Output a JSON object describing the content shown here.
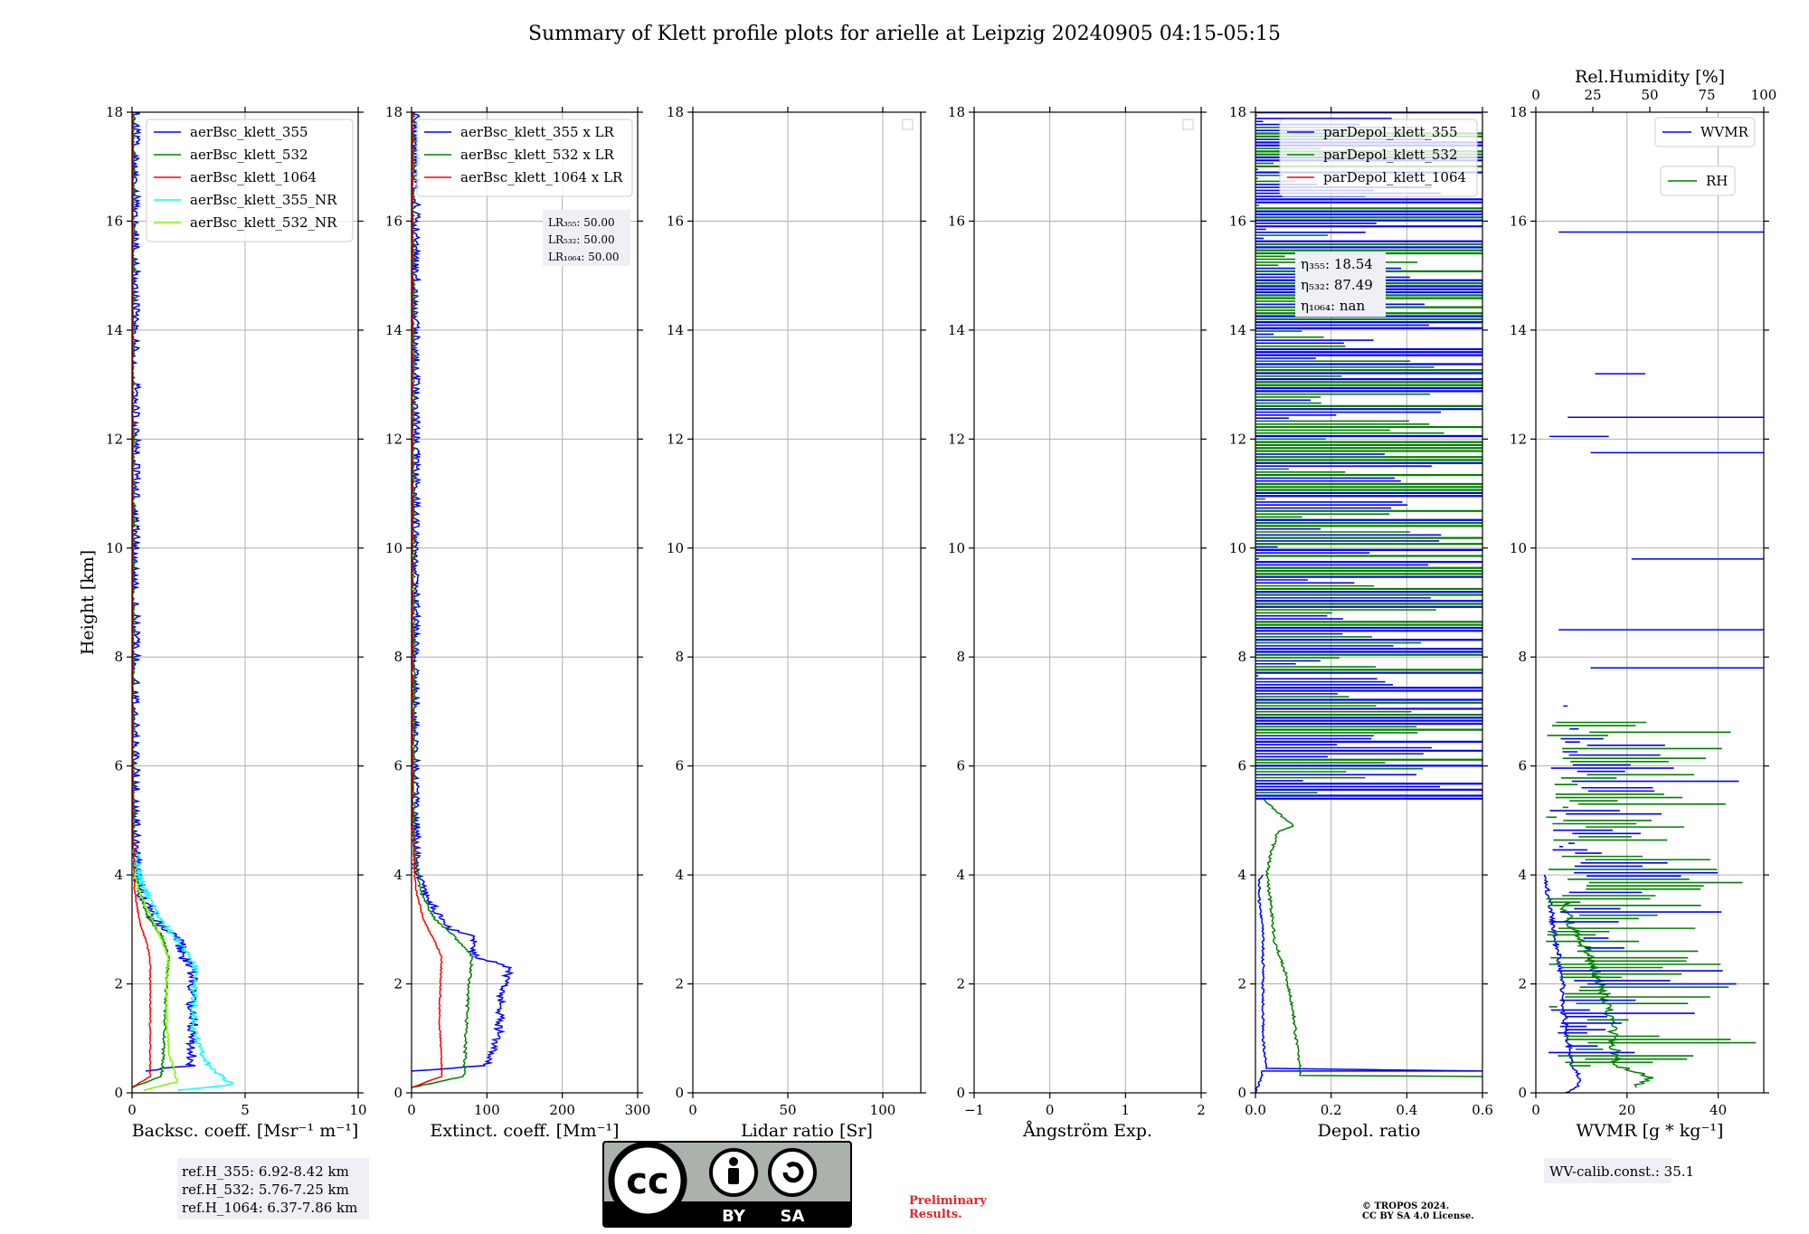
{
  "title": "Summary of Klett profile plots for arielle at Leipzig 20240905 04:15-05:15",
  "colors": {
    "blue": "#0000ff",
    "green": "#008000",
    "red": "#ff0000",
    "cyan": "#00ffff",
    "lightgreen": "#7cfc00",
    "grid": "#b0b0b0",
    "infobox": "#eef0f6",
    "prelim": "#e8222c"
  },
  "chart_data": [
    {
      "type": "line",
      "id": "backscatter",
      "xlabel": "Backsc. coeff. [Msr⁻¹ m⁻¹]",
      "ylabel": "Height [km]",
      "xlim": [
        0,
        10
      ],
      "ylim": [
        0,
        18
      ],
      "xticks": [
        "0",
        "5",
        "10"
      ],
      "xtick_values": [
        0,
        5,
        10
      ],
      "yticks": [
        0,
        2,
        4,
        6,
        8,
        10,
        12,
        14,
        16,
        18
      ],
      "legend_loc": "top-right",
      "series": [
        {
          "name": "aerBsc_klett_355",
          "color": "blue",
          "noise": 0.25,
          "points": [
            [
              0.4,
              0.4
            ],
            [
              2.6,
              0.5
            ],
            [
              2.7,
              1.0
            ],
            [
              2.6,
              1.8
            ],
            [
              2.7,
              2.3
            ],
            [
              2.2,
              2.5
            ],
            [
              2.1,
              2.9
            ],
            [
              1.5,
              3.0
            ],
            [
              1.0,
              3.2
            ],
            [
              0.5,
              3.6
            ],
            [
              0.2,
              4.0
            ],
            [
              0.1,
              5.0
            ],
            [
              0.1,
              18.0
            ]
          ]
        },
        {
          "name": "aerBsc_klett_532",
          "color": "green",
          "noise": 0.06,
          "points": [
            [
              0.0,
              0.1
            ],
            [
              1.3,
              0.3
            ],
            [
              1.4,
              0.8
            ],
            [
              1.5,
              1.8
            ],
            [
              1.6,
              2.5
            ],
            [
              1.3,
              2.9
            ],
            [
              0.7,
              3.2
            ],
            [
              0.3,
              3.7
            ],
            [
              0.05,
              4.5
            ],
            [
              0.05,
              18.0
            ]
          ]
        },
        {
          "name": "aerBsc_klett_1064",
          "color": "red",
          "noise": 0.03,
          "points": [
            [
              0.0,
              0.1
            ],
            [
              0.8,
              0.3
            ],
            [
              0.8,
              1.5
            ],
            [
              0.8,
              2.5
            ],
            [
              0.6,
              2.8
            ],
            [
              0.3,
              3.2
            ],
            [
              0.1,
              3.8
            ],
            [
              0.03,
              5.0
            ],
            [
              0.02,
              18.0
            ]
          ]
        },
        {
          "name": "aerBsc_klett_355_NR",
          "color": "cyan",
          "noise": 0.15,
          "points": [
            [
              2.0,
              0.05
            ],
            [
              4.4,
              0.15
            ],
            [
              3.2,
              0.6
            ],
            [
              2.7,
              1.2
            ],
            [
              2.8,
              2.3
            ],
            [
              2.4,
              2.6
            ],
            [
              1.2,
              3.2
            ],
            [
              0.3,
              4.0
            ],
            [
              0.2,
              4.4
            ]
          ]
        },
        {
          "name": "aerBsc_klett_532_NR",
          "color": "lightgreen",
          "noise": 0.05,
          "points": [
            [
              0.5,
              0.05
            ],
            [
              2.0,
              0.2
            ],
            [
              1.6,
              0.8
            ],
            [
              1.5,
              1.8
            ],
            [
              1.6,
              2.5
            ],
            [
              1.0,
              3.1
            ],
            [
              0.4,
              3.6
            ],
            [
              0.1,
              4.0
            ]
          ]
        }
      ],
      "legend": [
        "aerBsc_klett_355",
        "aerBsc_klett_532",
        "aerBsc_klett_1064",
        "aerBsc_klett_355_NR",
        "aerBsc_klett_532_NR"
      ]
    },
    {
      "type": "line",
      "id": "extinction",
      "xlabel": "Extinct. coeff. [Mm⁻¹]",
      "xlim": [
        0,
        300
      ],
      "ylim": [
        0,
        18
      ],
      "xticks": [
        "0",
        "100",
        "200",
        "300"
      ],
      "xtick_values": [
        0,
        100,
        200,
        300
      ],
      "yticks": [
        0,
        2,
        4,
        6,
        8,
        10,
        12,
        14,
        16,
        18
      ],
      "legend_loc": "top-right",
      "series": [
        {
          "name": "aerBsc_klett_355 x LR",
          "color": "blue",
          "noise": 6,
          "points": [
            [
              0,
              0.4
            ],
            [
              100,
              0.5
            ],
            [
              115,
              1.0
            ],
            [
              120,
              1.8
            ],
            [
              130,
              2.3
            ],
            [
              85,
              2.5
            ],
            [
              80,
              2.9
            ],
            [
              50,
              3.0
            ],
            [
              25,
              3.5
            ],
            [
              8,
              4.0
            ],
            [
              5,
              5.0
            ],
            [
              5,
              18.0
            ]
          ]
        },
        {
          "name": "aerBsc_klett_532 x LR",
          "color": "green",
          "noise": 2,
          "points": [
            [
              0,
              0.1
            ],
            [
              70,
              0.3
            ],
            [
              72,
              1.0
            ],
            [
              75,
              1.8
            ],
            [
              80,
              2.5
            ],
            [
              55,
              2.9
            ],
            [
              30,
              3.2
            ],
            [
              12,
              3.7
            ],
            [
              3,
              4.5
            ],
            [
              2,
              18.0
            ]
          ]
        },
        {
          "name": "aerBsc_klett_1064 x LR",
          "color": "red",
          "noise": 1,
          "points": [
            [
              0,
              0.1
            ],
            [
              40,
              0.3
            ],
            [
              37,
              1.5
            ],
            [
              40,
              2.5
            ],
            [
              30,
              2.8
            ],
            [
              15,
              3.2
            ],
            [
              5,
              3.8
            ],
            [
              1,
              5.0
            ],
            [
              1,
              18.0
            ]
          ]
        }
      ],
      "legend": [
        "aerBsc_klett_355 x LR",
        "aerBsc_klett_532 x LR",
        "aerBsc_klett_1064 x LR"
      ],
      "lr_box": [
        "LR₃₅₅: 50.00",
        "LR₅₃₂: 50.00",
        "LR₁₀₆₄: 50.00"
      ]
    },
    {
      "type": "line",
      "id": "lidar_ratio",
      "xlabel": "Lidar ratio [Sr]",
      "xlim": [
        0,
        120
      ],
      "ylim": [
        0,
        18
      ],
      "xticks": [
        "0",
        "50",
        "100"
      ],
      "xtick_values": [
        0,
        50,
        100
      ],
      "yticks": [
        0,
        2,
        4,
        6,
        8,
        10,
        12,
        14,
        16,
        18
      ],
      "series": []
    },
    {
      "type": "line",
      "id": "angstrom",
      "xlabel": "Ångström Exp.",
      "xlim": [
        -1,
        2
      ],
      "ylim": [
        0,
        18
      ],
      "xticks": [
        "−1",
        "0",
        "1",
        "2"
      ],
      "xtick_values": [
        -1,
        0,
        1,
        2
      ],
      "yticks": [
        0,
        2,
        4,
        6,
        8,
        10,
        12,
        14,
        16,
        18
      ],
      "series": []
    },
    {
      "type": "line",
      "id": "depol",
      "xlabel": "Depol. ratio",
      "xlim": [
        0.0,
        0.6
      ],
      "ylim": [
        0,
        18
      ],
      "xticks": [
        "0.0",
        "0.2",
        "0.4",
        "0.6"
      ],
      "xtick_values": [
        0.0,
        0.2,
        0.4,
        0.6
      ],
      "yticks": [
        0,
        2,
        4,
        6,
        8,
        10,
        12,
        14,
        16,
        18
      ],
      "legend_loc": "top-right",
      "series": [
        {
          "name": "parDepol_klett_355",
          "color": "blue",
          "noise": 0.003,
          "points": [
            [
              0.0,
              0.0
            ],
            [
              0.01,
              0.2
            ],
            [
              0.02,
              0.4
            ],
            [
              0.6,
              0.4
            ],
            [
              0.03,
              0.45
            ],
            [
              0.02,
              1.0
            ],
            [
              0.02,
              2.0
            ],
            [
              0.02,
              3.0
            ],
            [
              0.01,
              3.5
            ],
            [
              0.01,
              3.9
            ],
            [
              0.02,
              4.0
            ]
          ]
        },
        {
          "name": "parDepol_klett_532",
          "color": "green",
          "noise": 0.004,
          "points": [
            [
              0.6,
              0.3
            ],
            [
              0.12,
              0.32
            ],
            [
              0.11,
              0.8
            ],
            [
              0.1,
              1.5
            ],
            [
              0.08,
              2.2
            ],
            [
              0.05,
              2.8
            ],
            [
              0.04,
              3.5
            ],
            [
              0.03,
              4.0
            ],
            [
              0.04,
              4.4
            ],
            [
              0.06,
              4.8
            ],
            [
              0.1,
              4.9
            ],
            [
              0.05,
              5.2
            ],
            [
              0.02,
              5.4
            ]
          ]
        },
        {
          "name": "parDepol_klett_1064",
          "color": "red",
          "noise": 0,
          "points": []
        }
      ],
      "legend": [
        "parDepol_klett_355",
        "parDepol_klett_532",
        "parDepol_klett_1064"
      ],
      "eta_box": [
        "η₃₅₅: 18.54",
        "η₅₃₂: 87.49",
        "η₁₀₆₄: nan"
      ]
    },
    {
      "type": "line",
      "id": "wvmr",
      "xlabel": "WVMR [g * kg⁻¹]",
      "top_xlabel": "Rel.Humidity [%]",
      "xlim": [
        0,
        50
      ],
      "ylim": [
        0,
        18
      ],
      "xticks": [
        "0",
        "20",
        "40"
      ],
      "xtick_values": [
        0,
        20,
        40
      ],
      "top_xticks": [
        "0",
        "25",
        "50",
        "75",
        "100"
      ],
      "top_xtick_values": [
        0,
        25,
        50,
        75,
        100
      ],
      "yticks": [
        0,
        2,
        4,
        6,
        8,
        10,
        12,
        14,
        16,
        18
      ],
      "series": [
        {
          "name": "WVMR",
          "color": "blue",
          "noise": 0.6,
          "points": [
            [
              7,
              0.0
            ],
            [
              10,
              0.2
            ],
            [
              8,
              0.5
            ],
            [
              7,
              1.0
            ],
            [
              6,
              1.5
            ],
            [
              6,
              2.0
            ],
            [
              5,
              2.5
            ],
            [
              4,
              3.0
            ],
            [
              3,
              3.5
            ],
            [
              2,
              4.0
            ]
          ]
        },
        {
          "name": "RH",
          "color": "green",
          "noise": 1.2,
          "points": [
            [
              22,
              0.1
            ],
            [
              25,
              0.3
            ],
            [
              18,
              0.5
            ],
            [
              17,
              1.0
            ],
            [
              16,
              1.5
            ],
            [
              14,
              2.0
            ],
            [
              12,
              2.5
            ],
            [
              8,
              3.0
            ],
            [
              6,
              3.5
            ]
          ]
        }
      ],
      "legend": [
        "WVMR",
        "RH"
      ],
      "wv_calib": "WV-calib.const.: 35.1"
    }
  ],
  "refh_box": [
    "ref.H_355: 6.92-8.42 km",
    "ref.H_532: 5.76-7.25 km",
    "ref.H_1064: 6.37-7.86 km"
  ],
  "cc_logo": {
    "left": "BY",
    "right": "SA"
  },
  "preliminary": [
    "Preliminary",
    "Results."
  ],
  "copyright": [
    "© TROPOS 2024.",
    "CC BY SA 4.0 License."
  ]
}
